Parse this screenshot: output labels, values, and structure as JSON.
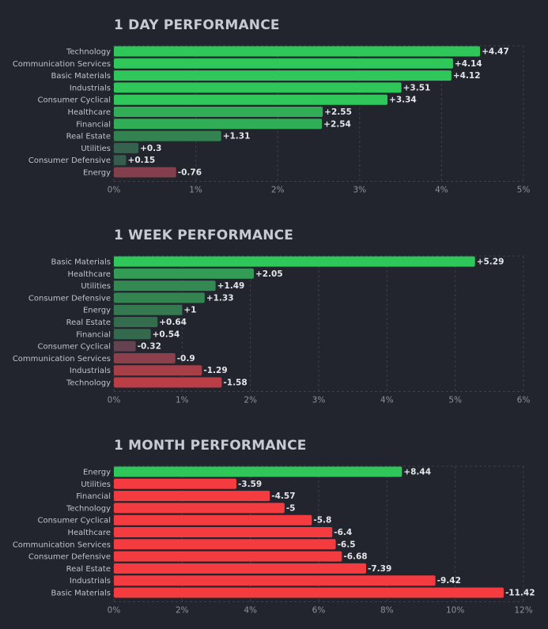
{
  "chart_data": [
    {
      "type": "bar",
      "orientation": "horizontal",
      "title": "1 DAY PERFORMANCE",
      "categories": [
        "Technology",
        "Communication Services",
        "Basic Materials",
        "Industrials",
        "Consumer Cyclical",
        "Healthcare",
        "Financial",
        "Real Estate",
        "Utilities",
        "Consumer Defensive",
        "Energy"
      ],
      "values": [
        4.47,
        4.14,
        4.12,
        3.51,
        3.34,
        2.55,
        2.54,
        1.31,
        0.3,
        0.15,
        -0.76
      ],
      "value_labels": [
        "+4.47",
        "+4.14",
        "+4.12",
        "+3.51",
        "+3.34",
        "+2.55",
        "+2.54",
        "+1.31",
        "+0.3",
        "+0.15",
        "-0.76"
      ],
      "xlim": [
        0,
        5
      ],
      "ticks": [
        0,
        1,
        2,
        3,
        4,
        5
      ],
      "tick_labels": [
        "0%",
        "1%",
        "2%",
        "3%",
        "4%",
        "5%"
      ],
      "xlabel": "",
      "ylabel": "",
      "grid": true
    },
    {
      "type": "bar",
      "orientation": "horizontal",
      "title": "1 WEEK PERFORMANCE",
      "categories": [
        "Basic Materials",
        "Healthcare",
        "Utilities",
        "Consumer Defensive",
        "Energy",
        "Real Estate",
        "Financial",
        "Consumer Cyclical",
        "Communication Services",
        "Industrials",
        "Technology"
      ],
      "values": [
        5.29,
        2.05,
        1.49,
        1.33,
        1,
        0.64,
        0.54,
        -0.32,
        -0.9,
        -1.29,
        -1.58
      ],
      "value_labels": [
        "+5.29",
        "+2.05",
        "+1.49",
        "+1.33",
        "+1",
        "+0.64",
        "+0.54",
        "-0.32",
        "-0.9",
        "-1.29",
        "-1.58"
      ],
      "xlim": [
        0,
        6
      ],
      "ticks": [
        0,
        1,
        2,
        3,
        4,
        5,
        6
      ],
      "tick_labels": [
        "0%",
        "1%",
        "2%",
        "3%",
        "4%",
        "5%",
        "6%"
      ],
      "xlabel": "",
      "ylabel": "",
      "grid": true
    },
    {
      "type": "bar",
      "orientation": "horizontal",
      "title": "1 MONTH PERFORMANCE",
      "categories": [
        "Energy",
        "Utilities",
        "Financial",
        "Technology",
        "Consumer Cyclical",
        "Healthcare",
        "Communication Services",
        "Consumer Defensive",
        "Real Estate",
        "Industrials",
        "Basic Materials"
      ],
      "values": [
        8.44,
        -3.59,
        -4.57,
        -5,
        -5.8,
        -6.4,
        -6.5,
        -6.68,
        -7.39,
        -9.42,
        -11.42
      ],
      "value_labels": [
        "+8.44",
        "-3.59",
        "-4.57",
        "-5",
        "-5.8",
        "-6.4",
        "-6.5",
        "-6.68",
        "-7.39",
        "-9.42",
        "-11.42"
      ],
      "xlim": [
        0,
        12
      ],
      "ticks": [
        0,
        2,
        4,
        6,
        8,
        10,
        12
      ],
      "tick_labels": [
        "0%",
        "2%",
        "4%",
        "6%",
        "8%",
        "10%",
        "12%"
      ],
      "xlabel": "",
      "ylabel": "",
      "grid": true
    }
  ]
}
